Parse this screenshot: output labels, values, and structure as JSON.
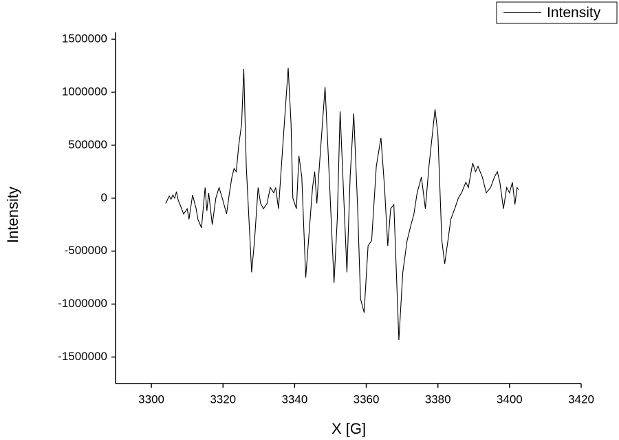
{
  "chart_data": {
    "type": "line",
    "x_label": "X [G]",
    "y_label": "Intensity",
    "x": [
      3304,
      3305,
      3305.5,
      3306,
      3306.5,
      3307,
      3307.5,
      3308,
      3309,
      3310,
      3310.5,
      3311.5,
      3312.5,
      3313,
      3314,
      3315,
      3315.5,
      3316,
      3317,
      3318,
      3318.9,
      3319.8,
      3321,
      3321.8,
      3322.5,
      3323.1,
      3323.7,
      3324.4,
      3325.2,
      3325.8,
      3326.5,
      3328,
      3328.8,
      3329.8,
      3330.5,
      3331.3,
      3332.3,
      3333.2,
      3334.2,
      3334.7,
      3335.5,
      3336.3,
      3338.2,
      3339,
      3339.5,
      3340.5,
      3341.2,
      3342,
      3343.1,
      3344.1,
      3345,
      3345.6,
      3346.2,
      3346.9,
      3348.5,
      3349.4,
      3351,
      3351.9,
      3352.7,
      3353.6,
      3354.6,
      3355.5,
      3356.5,
      3357.6,
      3358.4,
      3359.4,
      3360.5,
      3361.5,
      3362.8,
      3364.1,
      3365.1,
      3366,
      3366.8,
      3367.7,
      3369.1,
      3370.2,
      3371.4,
      3372.5,
      3373.3,
      3374.2,
      3375.4,
      3376.5,
      3377.5,
      3379.2,
      3380,
      3381.1,
      3381.9,
      3382.8,
      3383.6,
      3384.7,
      3385.7,
      3386.6,
      3387.8,
      3388.5,
      3389.7,
      3390.5,
      3391.2,
      3392.4,
      3393.5,
      3394.7,
      3395.8,
      3396.6,
      3397.3,
      3398.3,
      3399.2,
      3400,
      3400.8,
      3401.5,
      3402.1,
      3402.5
    ],
    "series": [
      {
        "name": "Intensity",
        "color": "#000000",
        "values": [
          -50000,
          20000,
          -10000,
          30000,
          0,
          60000,
          -20000,
          -60000,
          -150000,
          -100000,
          -200000,
          30000,
          -100000,
          -200000,
          -280000,
          100000,
          -120000,
          50000,
          -250000,
          0,
          100000,
          0,
          -150000,
          50000,
          200000,
          280000,
          250000,
          500000,
          700000,
          1220000,
          300000,
          -700000,
          -400000,
          100000,
          -50000,
          -100000,
          -50000,
          100000,
          50000,
          100000,
          -100000,
          300000,
          1230000,
          700000,
          0,
          -100000,
          400000,
          200000,
          -750000,
          -300000,
          100000,
          250000,
          -50000,
          300000,
          1050000,
          400000,
          -800000,
          -200000,
          820000,
          100000,
          -700000,
          200000,
          800000,
          -100000,
          -950000,
          -1080000,
          -450000,
          -400000,
          300000,
          570000,
          100000,
          -450000,
          -100000,
          -60000,
          -1340000,
          -700000,
          -400000,
          -250000,
          -150000,
          50000,
          200000,
          -100000,
          300000,
          840000,
          600000,
          -400000,
          -620000,
          -400000,
          -200000,
          -100000,
          0,
          50000,
          150000,
          100000,
          330000,
          250000,
          300000,
          200000,
          50000,
          100000,
          200000,
          250000,
          150000,
          -100000,
          100000,
          50000,
          150000,
          -60000,
          100000,
          80000
        ]
      }
    ],
    "xlim": [
      3290,
      3420
    ],
    "xticks": [
      3300,
      3320,
      3340,
      3360,
      3380,
      3400,
      3420
    ],
    "ylim": [
      -1750000,
      1500000
    ],
    "yticks": [
      -1500000,
      -1000000,
      -500000,
      0,
      500000,
      1000000,
      1500000
    ],
    "legend": "top-right"
  }
}
